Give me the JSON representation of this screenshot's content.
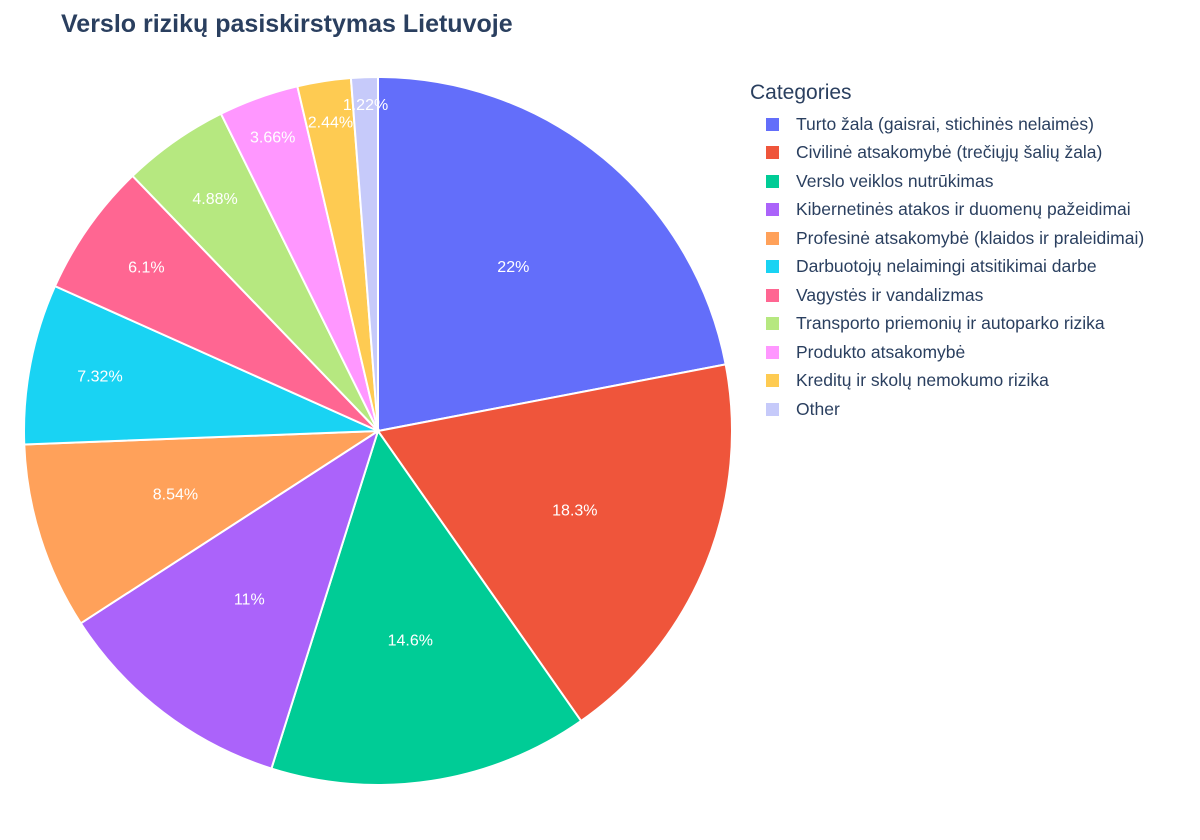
{
  "chart_data": {
    "type": "pie",
    "title": "Verslo rizikų pasiskirstymas Lietuvoje",
    "legend_title": "Categories",
    "legend_placement": "right",
    "slices": [
      {
        "label": "Turto žala (gaisrai, stichinės nelaimės)",
        "value": 22,
        "text": "22%",
        "color": "#636efa"
      },
      {
        "label": "Civilinė atsakomybė (trečiųjų šalių žala)",
        "value": 18.3,
        "text": "18.3%",
        "color": "#ef553b"
      },
      {
        "label": "Verslo veiklos nutrūkimas",
        "value": 14.6,
        "text": "14.6%",
        "color": "#00cc96"
      },
      {
        "label": "Kibernetinės atakos ir duomenų pažeidimai",
        "value": 11,
        "text": "11%",
        "color": "#ab63fa"
      },
      {
        "label": "Profesinė atsakomybė (klaidos ir praleidimai)",
        "value": 8.54,
        "text": "8.54%",
        "color": "#ffa15a"
      },
      {
        "label": "Darbuotojų nelaimingi atsitikimai darbe",
        "value": 7.32,
        "text": "7.32%",
        "color": "#19d3f3"
      },
      {
        "label": "Vagystės ir vandalizmas",
        "value": 6.1,
        "text": "6.1%",
        "color": "#ff6692"
      },
      {
        "label": "Transporto priemonių ir autoparko rizika",
        "value": 4.88,
        "text": "4.88%",
        "color": "#b6e880"
      },
      {
        "label": "Produkto atsakomybė",
        "value": 3.66,
        "text": "3.66%",
        "color": "#ff97ff"
      },
      {
        "label": "Kreditų ir skolų nemokumo rizika",
        "value": 2.44,
        "text": "2.44%",
        "color": "#fecb52"
      },
      {
        "label": "Other",
        "value": 1.22,
        "text": "1.22%",
        "color": "#c6cafa"
      }
    ],
    "direction": "clockwise",
    "start": "top"
  }
}
